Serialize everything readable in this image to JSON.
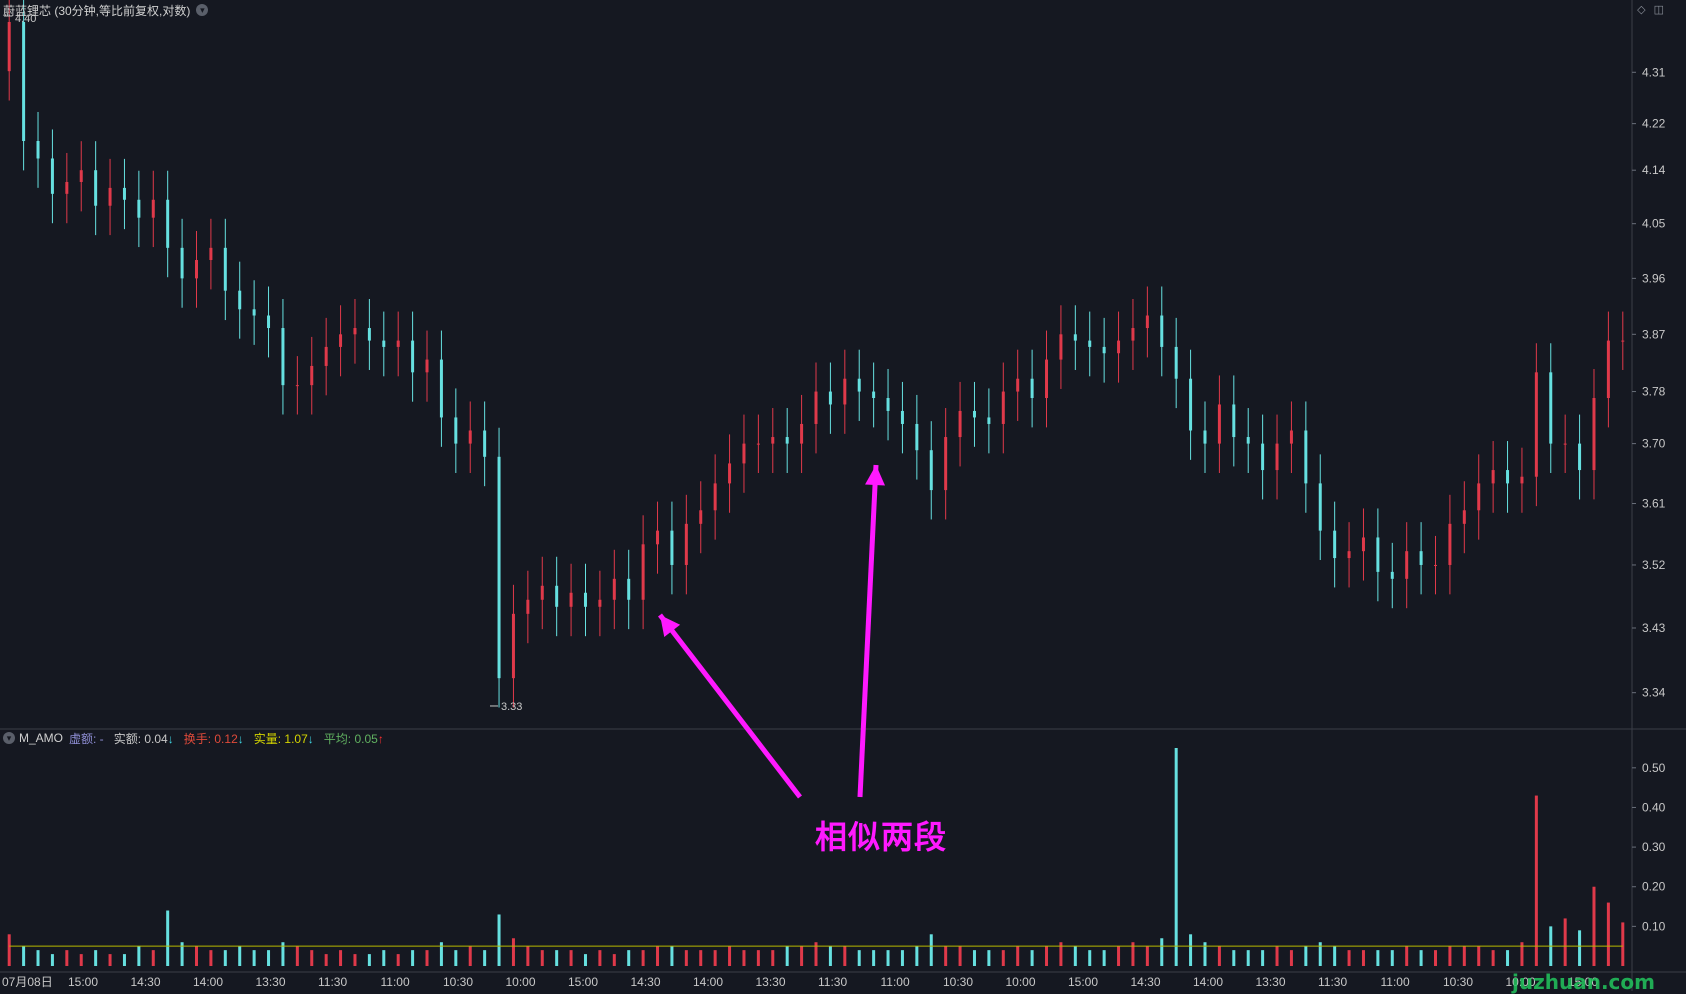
{
  "header": {
    "title": "蔚蓝锂芯 (30分钟,等比前复权,对数)",
    "icons": [
      "diamond-icon",
      "square-icon"
    ]
  },
  "price_axis": [
    "4.31",
    "4.22",
    "4.14",
    "4.05",
    "3.96",
    "3.87",
    "3.78",
    "3.70",
    "3.61",
    "3.52",
    "3.43",
    "3.34"
  ],
  "price_marks": {
    "high_label": "4.40",
    "low_label": "3.33"
  },
  "indicator": {
    "name": "M_AMO",
    "items": [
      {
        "label": "虚额:",
        "value": "-",
        "color": "#8f8fd6",
        "arrow": ""
      },
      {
        "label": "实额:",
        "value": "0.04",
        "color": "#c8c8c8",
        "arrow": "↓",
        "arrow_color": "#3fd3e0"
      },
      {
        "label": "换手:",
        "value": "0.12",
        "color": "#e04a3a",
        "arrow": "↓",
        "arrow_color": "#3fd3e0"
      },
      {
        "label": "实量:",
        "value": "1.07",
        "color": "#d4d400",
        "arrow": "↓",
        "arrow_color": "#3fd3e0"
      },
      {
        "label": "平均:",
        "value": "0.05",
        "color": "#60b060",
        "arrow": "↑",
        "arrow_color": "#ff3030"
      }
    ],
    "axis": [
      "0.50",
      "0.40",
      "0.30",
      "0.20",
      "0.10"
    ]
  },
  "time_axis": [
    "07月08日",
    "15:00",
    "14:30",
    "14:00",
    "13:30",
    "11:30",
    "11:00",
    "10:30",
    "10:00",
    "15:00",
    "14:30",
    "14:00",
    "13:30",
    "11:30",
    "11:00",
    "10:30",
    "10:00",
    "15:00",
    "14:30",
    "14:00",
    "13:30",
    "11:30",
    "11:00",
    "10:30",
    "10:00",
    "15:00"
  ],
  "annotation": {
    "text": "相似两段",
    "color": "#ff19ff"
  },
  "watermark": "juzhuan.com",
  "colors": {
    "up": "#e0394a",
    "down": "#66e0e0",
    "background": "#151821"
  },
  "chart_data": {
    "type": "candlestick",
    "scale": "log",
    "price_ylim": [
      3.3,
      4.4
    ],
    "close": [
      4.4,
      4.19,
      4.16,
      4.1,
      4.12,
      4.14,
      4.08,
      4.11,
      4.09,
      4.06,
      4.09,
      4.01,
      3.96,
      3.99,
      4.01,
      3.94,
      3.91,
      3.9,
      3.88,
      3.79,
      3.79,
      3.82,
      3.85,
      3.87,
      3.88,
      3.86,
      3.85,
      3.86,
      3.81,
      3.83,
      3.74,
      3.7,
      3.72,
      3.68,
      3.36,
      3.45,
      3.47,
      3.49,
      3.46,
      3.48,
      3.46,
      3.47,
      3.5,
      3.47,
      3.55,
      3.57,
      3.52,
      3.58,
      3.6,
      3.64,
      3.67,
      3.7,
      3.7,
      3.71,
      3.7,
      3.73,
      3.78,
      3.76,
      3.8,
      3.78,
      3.77,
      3.75,
      3.73,
      3.69,
      3.63,
      3.71,
      3.75,
      3.74,
      3.73,
      3.78,
      3.8,
      3.77,
      3.83,
      3.87,
      3.86,
      3.85,
      3.84,
      3.86,
      3.88,
      3.9,
      3.85,
      3.8,
      3.72,
      3.7,
      3.76,
      3.71,
      3.7,
      3.66,
      3.7,
      3.72,
      3.64,
      3.57,
      3.53,
      3.54,
      3.56,
      3.51,
      3.5,
      3.54,
      3.52,
      3.52,
      3.58,
      3.6,
      3.64,
      3.66,
      3.64,
      3.65,
      3.81,
      3.7,
      3.7,
      3.66,
      3.77,
      3.86,
      3.86
    ],
    "volume": [
      0.08,
      0.05,
      0.04,
      0.03,
      0.04,
      0.03,
      0.04,
      0.03,
      0.03,
      0.05,
      0.04,
      0.14,
      0.06,
      0.05,
      0.04,
      0.04,
      0.05,
      0.04,
      0.04,
      0.06,
      0.05,
      0.04,
      0.03,
      0.04,
      0.03,
      0.03,
      0.04,
      0.03,
      0.04,
      0.04,
      0.06,
      0.04,
      0.05,
      0.04,
      0.13,
      0.07,
      0.05,
      0.04,
      0.04,
      0.04,
      0.03,
      0.04,
      0.03,
      0.04,
      0.04,
      0.05,
      0.05,
      0.04,
      0.04,
      0.04,
      0.05,
      0.04,
      0.04,
      0.04,
      0.05,
      0.05,
      0.06,
      0.05,
      0.05,
      0.04,
      0.04,
      0.04,
      0.04,
      0.05,
      0.08,
      0.05,
      0.05,
      0.04,
      0.04,
      0.04,
      0.05,
      0.04,
      0.05,
      0.06,
      0.05,
      0.04,
      0.04,
      0.05,
      0.06,
      0.05,
      0.07,
      0.55,
      0.08,
      0.06,
      0.05,
      0.04,
      0.04,
      0.04,
      0.05,
      0.04,
      0.05,
      0.06,
      0.05,
      0.04,
      0.04,
      0.04,
      0.04,
      0.05,
      0.04,
      0.04,
      0.05,
      0.05,
      0.05,
      0.04,
      0.04,
      0.06,
      0.43,
      0.1,
      0.12,
      0.09,
      0.2,
      0.16,
      0.11
    ],
    "volume_ylim": [
      0,
      0.55
    ],
    "avg_line_level": 0.05,
    "xlabel": "",
    "ylabel": ""
  }
}
